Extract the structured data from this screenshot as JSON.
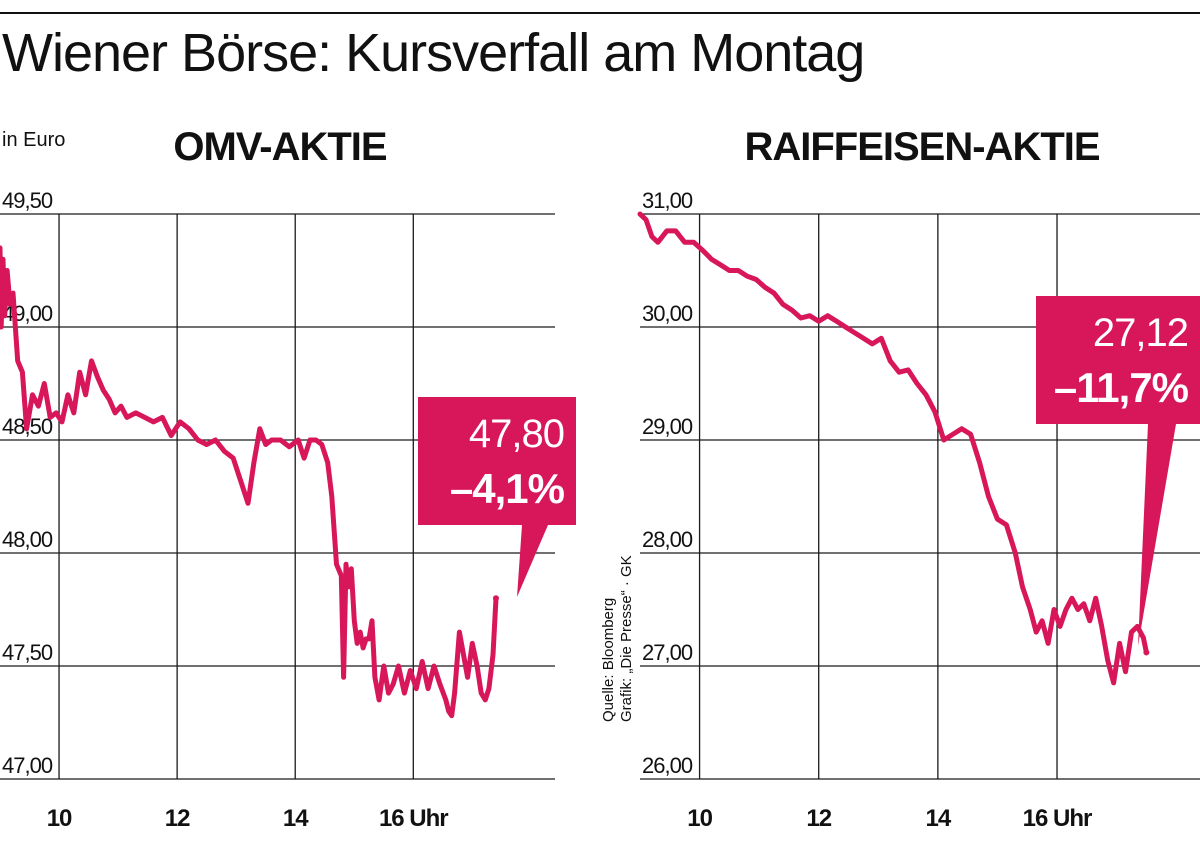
{
  "title": "Wiener Börse: Kursverfall am Montag",
  "unit_label": "in Euro",
  "source_line1": "Quelle: Bloomberg",
  "source_line2": "Grafik: „Die Presse“ · GK",
  "colors": {
    "line": "#d8175a",
    "grid": "#1a1a1a",
    "text": "#111111",
    "callout_text": "#ffffff"
  },
  "chart_data": [
    {
      "type": "line",
      "title": "OMV-AKTIE",
      "ylim": [
        47.0,
        49.5
      ],
      "y_ticks": [
        49.5,
        49.0,
        48.5,
        48.0,
        47.5,
        47.0
      ],
      "y_tick_labels": [
        "49,50",
        "49,00",
        "48,50",
        "48,00",
        "47,50",
        "47,00"
      ],
      "xlim": [
        9.0,
        18.4
      ],
      "x_ticks": [
        10,
        12,
        14,
        16
      ],
      "x_tick_labels": [
        "10",
        "12",
        "14",
        "16 Uhr"
      ],
      "grid": true,
      "callout": {
        "value": "47,80",
        "change": "–4,1%"
      },
      "series": [
        {
          "x": [
            9.0,
            9.02,
            9.05,
            9.08,
            9.12,
            9.17,
            9.22,
            9.3,
            9.38,
            9.45,
            9.55,
            9.65,
            9.75,
            9.85,
            9.95,
            10.05,
            10.15,
            10.25,
            10.35,
            10.45,
            10.55,
            10.65,
            10.75,
            10.85,
            10.95,
            11.05,
            11.15,
            11.3,
            11.45,
            11.6,
            11.75,
            11.9,
            12.05,
            12.2,
            12.35,
            12.5,
            12.65,
            12.8,
            12.95,
            13.1,
            13.2,
            13.3,
            13.4,
            13.5,
            13.6,
            13.75,
            13.9,
            14.05,
            14.15,
            14.25,
            14.35,
            14.45,
            14.55,
            14.62,
            14.7,
            14.78,
            14.82,
            14.86,
            14.9,
            14.95,
            15.0,
            15.05,
            15.1,
            15.15,
            15.2,
            15.25,
            15.3,
            15.35,
            15.42,
            15.5,
            15.58,
            15.66,
            15.75,
            15.85,
            15.95,
            16.05,
            16.15,
            16.25,
            16.35,
            16.45,
            16.55,
            16.6,
            16.65,
            16.7,
            16.78,
            16.85,
            16.92,
            17.0,
            17.08,
            17.15,
            17.22,
            17.28,
            17.35,
            17.4
          ],
          "y": [
            49.35,
            49.0,
            49.3,
            49.05,
            49.25,
            49.1,
            49.15,
            48.85,
            48.8,
            48.55,
            48.7,
            48.65,
            48.75,
            48.6,
            48.62,
            48.58,
            48.7,
            48.62,
            48.8,
            48.7,
            48.85,
            48.78,
            48.72,
            48.68,
            48.62,
            48.65,
            48.6,
            48.62,
            48.6,
            48.58,
            48.6,
            48.52,
            48.58,
            48.55,
            48.5,
            48.48,
            48.5,
            48.45,
            48.42,
            48.3,
            48.22,
            48.4,
            48.55,
            48.48,
            48.5,
            48.5,
            48.47,
            48.5,
            48.42,
            48.5,
            48.5,
            48.48,
            48.4,
            48.25,
            47.95,
            47.9,
            47.45,
            47.95,
            47.85,
            47.93,
            47.7,
            47.6,
            47.65,
            47.58,
            47.62,
            47.62,
            47.7,
            47.45,
            47.35,
            47.5,
            47.38,
            47.42,
            47.5,
            47.38,
            47.48,
            47.4,
            47.52,
            47.4,
            47.5,
            47.42,
            47.35,
            47.3,
            47.28,
            47.38,
            47.65,
            47.55,
            47.45,
            47.6,
            47.5,
            47.38,
            47.35,
            47.4,
            47.55,
            47.8
          ]
        }
      ]
    },
    {
      "type": "line",
      "title": "RAIFFEISEN-AKTIE",
      "ylim": [
        26.0,
        31.0
      ],
      "y_ticks": [
        31.0,
        30.0,
        29.0,
        28.0,
        27.0,
        26.0
      ],
      "y_tick_labels": [
        "31,00",
        "30,00",
        "29,00",
        "28,00",
        "27,00",
        "26,00"
      ],
      "xlim": [
        9.0,
        18.4
      ],
      "x_ticks": [
        10,
        12,
        14,
        16
      ],
      "x_tick_labels": [
        "10",
        "12",
        "14",
        "16 Uhr"
      ],
      "grid": true,
      "callout": {
        "value": "27,12",
        "change": "–11,7%"
      },
      "series": [
        {
          "x": [
            9.0,
            9.1,
            9.2,
            9.3,
            9.45,
            9.6,
            9.75,
            9.9,
            10.05,
            10.2,
            10.35,
            10.5,
            10.65,
            10.8,
            10.95,
            11.1,
            11.25,
            11.4,
            11.55,
            11.7,
            11.85,
            12.0,
            12.15,
            12.3,
            12.45,
            12.6,
            12.75,
            12.9,
            13.05,
            13.2,
            13.35,
            13.5,
            13.65,
            13.8,
            13.95,
            14.1,
            14.25,
            14.4,
            14.55,
            14.7,
            14.85,
            15.0,
            15.15,
            15.3,
            15.42,
            15.55,
            15.65,
            15.75,
            15.85,
            15.95,
            16.05,
            16.15,
            16.25,
            16.35,
            16.45,
            16.55,
            16.65,
            16.75,
            16.85,
            16.95,
            17.05,
            17.15,
            17.25,
            17.35,
            17.45,
            17.5
          ],
          "y": [
            31.0,
            30.95,
            30.8,
            30.75,
            30.85,
            30.85,
            30.75,
            30.75,
            30.68,
            30.6,
            30.55,
            30.5,
            30.5,
            30.45,
            30.42,
            30.35,
            30.3,
            30.2,
            30.15,
            30.08,
            30.1,
            30.05,
            30.1,
            30.05,
            30.0,
            29.95,
            29.9,
            29.85,
            29.9,
            29.7,
            29.6,
            29.62,
            29.5,
            29.4,
            29.25,
            29.0,
            29.05,
            29.1,
            29.05,
            28.8,
            28.5,
            28.3,
            28.25,
            28.0,
            27.7,
            27.5,
            27.3,
            27.4,
            27.2,
            27.5,
            27.35,
            27.5,
            27.6,
            27.5,
            27.55,
            27.4,
            27.6,
            27.35,
            27.05,
            26.85,
            27.2,
            26.95,
            27.3,
            27.35,
            27.25,
            27.12
          ]
        }
      ]
    }
  ]
}
